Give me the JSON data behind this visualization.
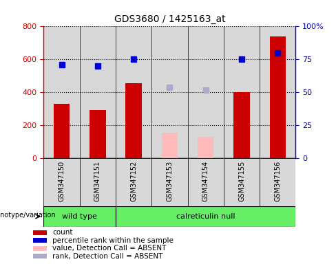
{
  "title": "GDS3680 / 1425163_at",
  "samples": [
    "GSM347150",
    "GSM347151",
    "GSM347152",
    "GSM347153",
    "GSM347154",
    "GSM347155",
    "GSM347156"
  ],
  "bar_values": [
    330,
    295,
    455,
    155,
    130,
    400,
    740
  ],
  "bar_present": [
    true,
    true,
    true,
    false,
    false,
    true,
    true
  ],
  "percentile_values": [
    71,
    70,
    75,
    54,
    52,
    75,
    80
  ],
  "percentile_present": [
    true,
    true,
    true,
    false,
    false,
    true,
    true
  ],
  "bar_color_present": "#cc0000",
  "bar_color_absent": "#ffbbbb",
  "dot_color_present": "#0000cc",
  "dot_color_absent": "#aaaacc",
  "ylim_left": [
    0,
    800
  ],
  "ylim_right": [
    0,
    100
  ],
  "yticks_left": [
    0,
    200,
    400,
    600,
    800
  ],
  "yticks_right": [
    0,
    25,
    50,
    75,
    100
  ],
  "ytick_labels_right": [
    "0",
    "25",
    "50",
    "75",
    "100%"
  ],
  "groups": [
    {
      "label": "wild type",
      "start": 0,
      "end": 1
    },
    {
      "label": "calreticulin null",
      "start": 2,
      "end": 6
    }
  ],
  "group_color": "#66ee66",
  "genotype_label": "genotype/variation",
  "legend_items": [
    {
      "label": "count",
      "color": "#cc0000"
    },
    {
      "label": "percentile rank within the sample",
      "color": "#0000cc"
    },
    {
      "label": "value, Detection Call = ABSENT",
      "color": "#ffbbbb"
    },
    {
      "label": "rank, Detection Call = ABSENT",
      "color": "#aaaacc"
    }
  ],
  "cell_bg": "#d8d8d8",
  "left_tick_color": "#cc0000",
  "right_tick_color": "#0000bb"
}
